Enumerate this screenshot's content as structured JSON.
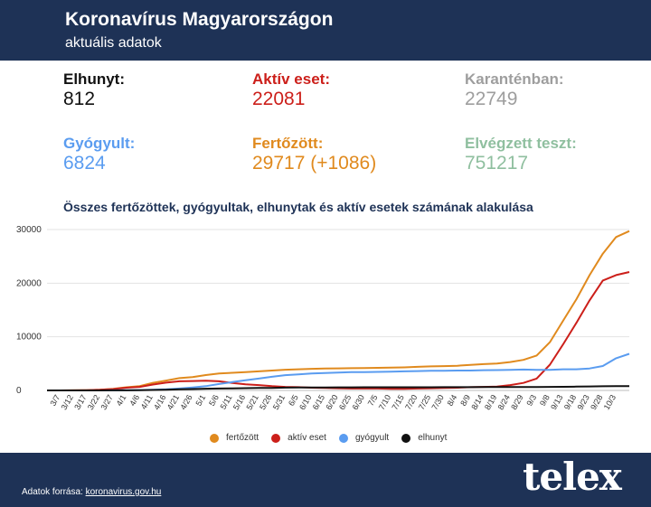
{
  "header": {
    "title": "Koronavírus Magyarországon",
    "subtitle": "aktuális adatok"
  },
  "stats": [
    {
      "label": "Elhunyt:",
      "value": "812",
      "color": "#111111"
    },
    {
      "label": "Aktív eset:",
      "value": "22081",
      "color": "#cc1f1a"
    },
    {
      "label": "Karanténban:",
      "value": "22749",
      "color": "#9e9e9e"
    },
    {
      "label": "Gyógyult:",
      "value": "6824",
      "color": "#5a9cf0"
    },
    {
      "label": "Fertőzött:",
      "value": "29717  (+1086)",
      "color": "#e08a1e"
    },
    {
      "label": "Elvégzett teszt:",
      "value": "751217",
      "color": "#8fbf9f"
    }
  ],
  "chart_data": {
    "type": "line",
    "title": "Összes fertőzöttek, gyógyultak, elhunytak és aktív esetek számának alakulása",
    "y_ticks": [
      0,
      10000,
      20000,
      30000
    ],
    "ylim": [
      0,
      30000
    ],
    "x_tick_labels": [
      "3/7",
      "3/12",
      "3/17",
      "3/22",
      "3/27",
      "4/1",
      "4/6",
      "4/11",
      "4/16",
      "4/21",
      "4/26",
      "5/1",
      "5/6",
      "5/11",
      "5/16",
      "5/21",
      "5/26",
      "5/31",
      "6/5",
      "6/10",
      "6/15",
      "6/20",
      "6/25",
      "6/30",
      "7/5",
      "7/10",
      "7/15",
      "7/20",
      "7/25",
      "7/30",
      "8/4",
      "8/9",
      "8/14",
      "8/19",
      "8/24",
      "8/29",
      "9/3",
      "9/8",
      "9/13",
      "9/18",
      "9/23",
      "9/28",
      "10/3"
    ],
    "grid": true,
    "legend_position": "bottom",
    "x": [
      "3/4",
      "3/7",
      "3/12",
      "3/17",
      "3/22",
      "3/27",
      "4/1",
      "4/6",
      "4/11",
      "4/16",
      "4/21",
      "4/26",
      "5/1",
      "5/6",
      "5/11",
      "5/16",
      "5/21",
      "5/26",
      "5/31",
      "6/5",
      "6/10",
      "6/15",
      "6/20",
      "6/25",
      "6/30",
      "7/5",
      "7/10",
      "7/15",
      "7/20",
      "7/25",
      "7/30",
      "8/4",
      "8/9",
      "8/14",
      "8/19",
      "8/24",
      "8/29",
      "9/3",
      "9/8",
      "9/13",
      "9/18",
      "9/23",
      "9/28",
      "10/3",
      "10/5"
    ],
    "series": [
      {
        "name": "fertőzött",
        "color": "#e08a1e",
        "values": [
          2,
          5,
          16,
          50,
          131,
          300,
          585,
          817,
          1410,
          1834,
          2284,
          2500,
          2863,
          3150,
          3284,
          3417,
          3556,
          3700,
          3867,
          3950,
          4030,
          4080,
          4110,
          4140,
          4160,
          4210,
          4250,
          4300,
          4400,
          4490,
          4530,
          4600,
          4750,
          4900,
          5000,
          5300,
          5700,
          6500,
          9000,
          13000,
          17000,
          21500,
          25500,
          28600,
          29717
        ]
      },
      {
        "name": "aktív eset",
        "color": "#cc1f1a",
        "values": [
          2,
          5,
          15,
          45,
          120,
          260,
          500,
          650,
          1100,
          1450,
          1700,
          1750,
          1800,
          1700,
          1400,
          1150,
          1000,
          800,
          650,
          600,
          500,
          450,
          400,
          350,
          350,
          350,
          300,
          300,
          350,
          400,
          450,
          500,
          600,
          650,
          700,
          1000,
          1400,
          2200,
          4800,
          8600,
          12600,
          16800,
          20500,
          21500,
          22081
        ]
      },
      {
        "name": "gyógyult",
        "color": "#5a9cf0",
        "values": [
          0,
          0,
          1,
          2,
          5,
          20,
          40,
          60,
          120,
          200,
          350,
          550,
          800,
          1200,
          1550,
          1900,
          2200,
          2550,
          2850,
          3000,
          3150,
          3250,
          3330,
          3400,
          3420,
          3450,
          3510,
          3550,
          3600,
          3650,
          3670,
          3700,
          3700,
          3780,
          3800,
          3850,
          3900,
          3850,
          3850,
          3950,
          3950,
          4100,
          4550,
          6000,
          6824
        ]
      },
      {
        "name": "elhunyt",
        "color": "#111111",
        "values": [
          0,
          0,
          0,
          1,
          4,
          10,
          21,
          47,
          85,
          122,
          200,
          260,
          312,
          350,
          390,
          420,
          450,
          480,
          520,
          535,
          550,
          560,
          570,
          580,
          590,
          595,
          596,
          596,
          597,
          598,
          600,
          608,
          614,
          616,
          618,
          620,
          623,
          630,
          650,
          680,
          710,
          740,
          780,
          800,
          812
        ]
      }
    ]
  },
  "legend": [
    {
      "label": "fertőzött",
      "color": "#e08a1e"
    },
    {
      "label": "aktív eset",
      "color": "#cc1f1a"
    },
    {
      "label": "gyógyult",
      "color": "#5a9cf0"
    },
    {
      "label": "elhunyt",
      "color": "#111111"
    }
  ],
  "footer": {
    "source_prefix": "Adatok forrása: ",
    "source_link": "koronavirus.gov.hu",
    "logo": "telex"
  }
}
